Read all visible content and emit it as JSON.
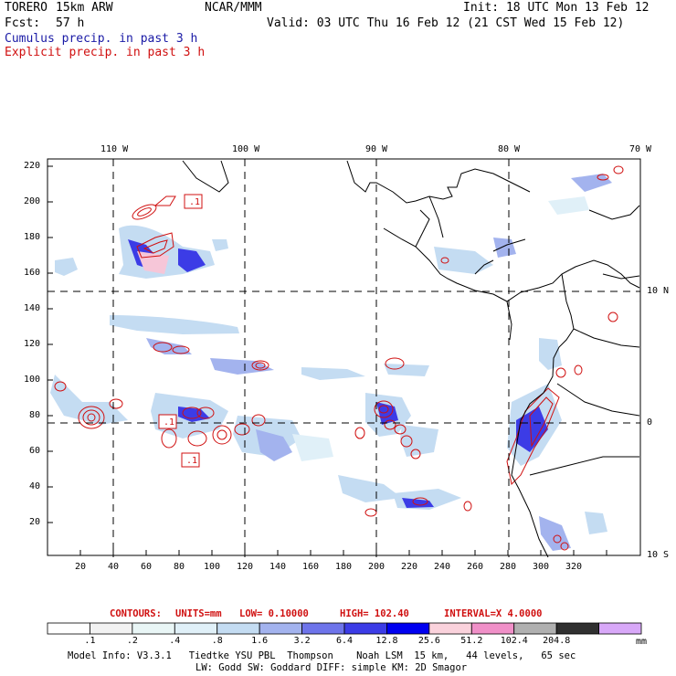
{
  "header": {
    "model": "TORERO",
    "resolution": "15km ARW",
    "org": "NCAR/MMM",
    "init": "Init: 18 UTC Mon 13 Feb 12",
    "fcst_label": "Fcst:",
    "fcst_value": "57 h",
    "valid": "Valid: 03 UTC Thu 16 Feb 12 (21 CST Wed 15 Feb 12)",
    "cumulus": "Cumulus precip. in past 3 h",
    "explicit": "Explicit precip. in past 3 h"
  },
  "axes": {
    "lon_labels": [
      "110 W",
      "100 W",
      "90 W",
      "80 W",
      "70 W"
    ],
    "lat_labels": [
      "10 N",
      "0",
      "10 S"
    ],
    "y_ticks": [
      "220",
      "200",
      "180",
      "160",
      "140",
      "120",
      "100",
      "80",
      "60",
      "40",
      "20"
    ],
    "x_ticks": [
      "20",
      "40",
      "60",
      "80",
      "100",
      "120",
      "140",
      "160",
      "180",
      "200",
      "220",
      "240",
      "260",
      "280",
      "300",
      "320"
    ]
  },
  "contour_labels": [
    ".1",
    ".1",
    ".1"
  ],
  "contour_info": {
    "contours": "CONTOURS:",
    "units": "UNITS=mm",
    "low": "LOW= 0.10000",
    "high": "HIGH= 102.40",
    "interval": "INTERVAL=X 4.0000"
  },
  "legend": {
    "values": [
      ".1",
      ".2",
      ".4",
      ".8",
      "1.6",
      "3.2",
      "6.4",
      "12.8",
      "25.6",
      "51.2",
      "102.4",
      "204.8"
    ],
    "unit": "mm",
    "colors": [
      "#ffffff",
      "#f2f2f2",
      "#e9f6f6",
      "#e0f0f8",
      "#c4dcf2",
      "#a3b3ee",
      "#6e74ea",
      "#3c3ce6",
      "#0000f0",
      "#fad2dc",
      "#f090c8",
      "#b0b0b0",
      "#303030",
      "#d8a8f8"
    ]
  },
  "footer": {
    "line1": "Model Info: V3.3.1   Tiedtke YSU PBL  Thompson    Noah LSM  15 km,   44 levels,   65 sec",
    "line2": "LW: Godd SW: Goddard DIFF: simple KM: 2D Smagor"
  }
}
